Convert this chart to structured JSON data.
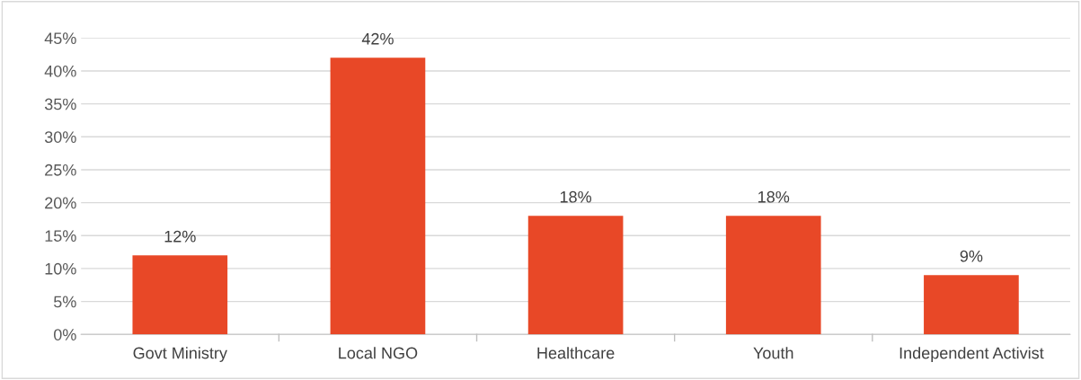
{
  "chart_data": {
    "type": "bar",
    "categories": [
      "Govt Ministry",
      "Local NGO",
      "Healthcare",
      "Youth",
      "Independent Activist"
    ],
    "values": [
      12,
      42,
      18,
      18,
      9
    ],
    "value_labels": [
      "12%",
      "42%",
      "18%",
      "18%",
      "9%"
    ],
    "color": "#e84827",
    "ylim": [
      0,
      45
    ],
    "yticks": [
      {
        "value": 0,
        "label": "0%"
      },
      {
        "value": 5,
        "label": "5%"
      },
      {
        "value": 10,
        "label": "10%"
      },
      {
        "value": 15,
        "label": "15%"
      },
      {
        "value": 20,
        "label": "20%"
      },
      {
        "value": 25,
        "label": "25%"
      },
      {
        "value": 30,
        "label": "30%"
      },
      {
        "value": 35,
        "label": "35%"
      },
      {
        "value": 40,
        "label": "40%"
      },
      {
        "value": 45,
        "label": "45%"
      }
    ],
    "grid": "y",
    "legend": false
  }
}
